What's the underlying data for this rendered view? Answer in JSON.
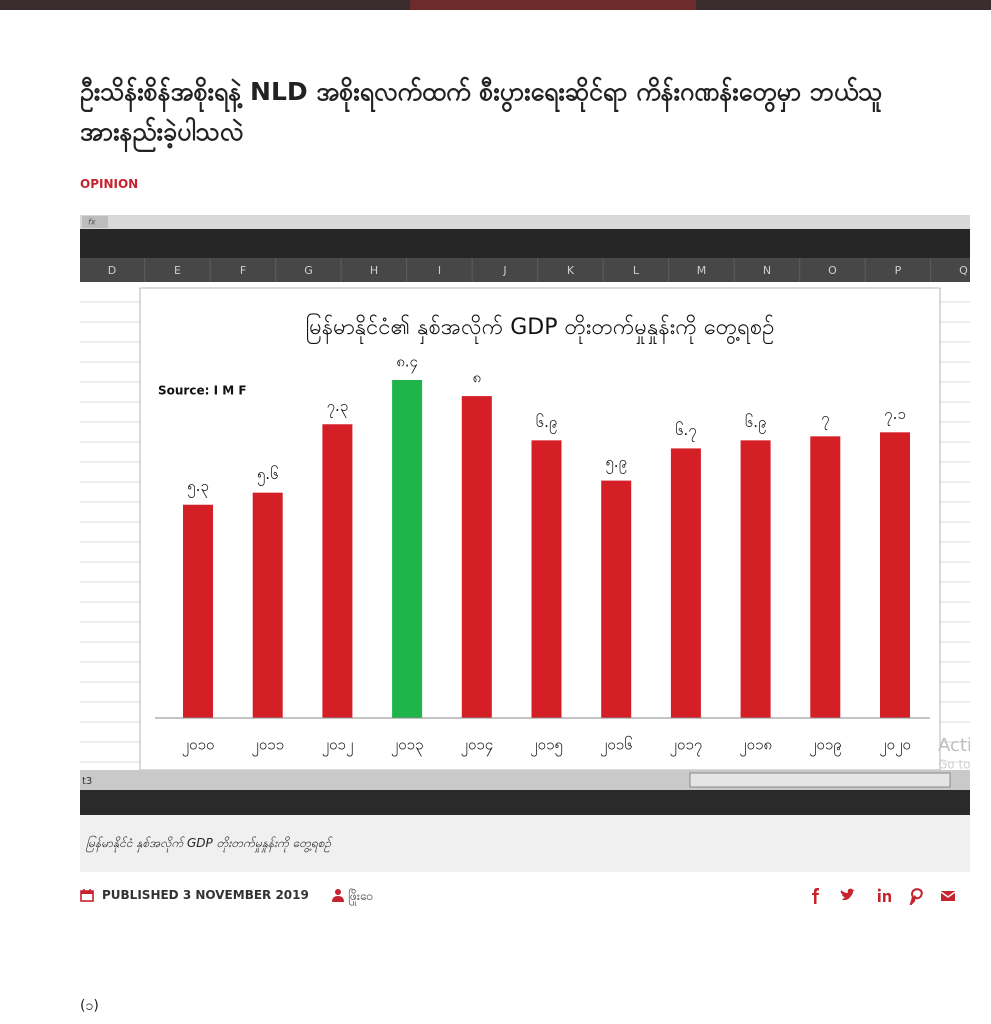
{
  "article": {
    "title": "ဦးသိန်းစိန်အစိုးရနဲ့ NLD အစိုးရလက်ထက် စီးပွားရေးဆိုင်ရာ ကိန်းဂဏန်းတွေမှာ ဘယ်သူ အားနည်းခဲ့ပါသလဲ",
    "category": "OPINION",
    "figure": {
      "spreadsheet": {
        "formula_label": "fx",
        "columns": [
          "D",
          "E",
          "F",
          "G",
          "H",
          "I",
          "J",
          "K",
          "L",
          "M",
          "N",
          "O",
          "P",
          "Q"
        ],
        "sheet_tab": "t3",
        "watermark": [
          "Acti",
          "Go to"
        ]
      },
      "chart": {
        "type": "bar",
        "title": "မြန်မာနိုင်ငံ၏ နှစ်အလိုက် GDP တိုးတက်မှုနှုန်းကို တွေ့ရစဉ်",
        "source": "Source: I M F",
        "categories": [
          "၂၀၁၀",
          "၂၀၁၁",
          "၂၀၁၂",
          "၂၀၁၃",
          "၂၀၁၄",
          "၂၀၁၅",
          "၂၀၁၆",
          "၂၀၁၇",
          "၂၀၁၈",
          "၂၀၁၉",
          "၂၀၂၀"
        ],
        "values": [
          5.3,
          5.6,
          7.3,
          8.4,
          8,
          6.9,
          5.9,
          6.7,
          6.9,
          7,
          7.1
        ],
        "value_labels": [
          "၅.၃",
          "၅.၆",
          "၇.၃",
          "၈.၄",
          "၈",
          "၆.၉",
          "၅.၉",
          "၆.၇",
          "၆.၉",
          "၇",
          "၇.၁"
        ],
        "colors": [
          "#d41f27",
          "#d41f27",
          "#d41f27",
          "#1fb54b",
          "#d41f27",
          "#d41f27",
          "#d41f27",
          "#d41f27",
          "#d41f27",
          "#d41f27",
          "#d41f27"
        ]
      },
      "caption": "မြန်မာနိုင်ငံ နှစ်အလိုက် GDP တိုးတက်မှုနှုန်းကို တွေ့ရစဉ်"
    },
    "meta": {
      "published": "PUBLISHED 3 NOVEMBER 2019",
      "author": "ဖြိုးဝေ"
    },
    "body": [
      "(၁)"
    ]
  }
}
